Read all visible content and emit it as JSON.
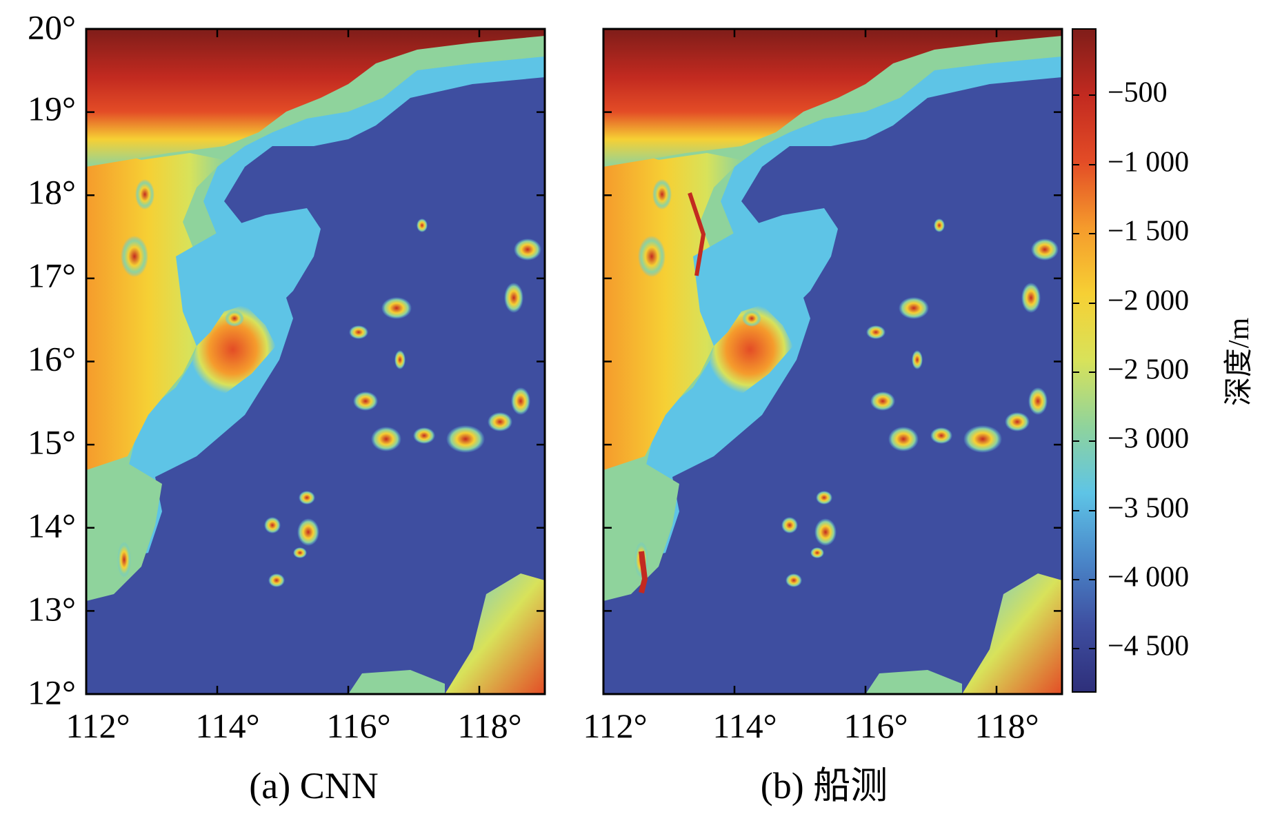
{
  "panels": [
    {
      "id": "a",
      "caption": "(a) CNN",
      "x_ticks": [
        "112°",
        "114°",
        "116°",
        "118°"
      ],
      "y_ticks": [
        "12°",
        "13°",
        "14°",
        "15°",
        "16°",
        "17°",
        "18°",
        "19°",
        "20°"
      ]
    },
    {
      "id": "b",
      "caption": "(b) 船测",
      "x_ticks": [
        "112°",
        "114°",
        "116°",
        "118°"
      ]
    }
  ],
  "colorbar": {
    "title": "深度/m",
    "ticks": [
      "−500",
      "−1 000",
      "−1 500",
      "−2 000",
      "−2 500",
      "−3 000",
      "−3 500",
      "−4 000",
      "−4 500"
    ],
    "colors": [
      "#2e2f7a",
      "#3e4ea0",
      "#4a87c9",
      "#5ec4e6",
      "#8fd39c",
      "#d8e25a",
      "#f6d034",
      "#f59b2c",
      "#e34c26",
      "#c22a20",
      "#7f1d19"
    ]
  },
  "map": {
    "lon_range": [
      112,
      119
    ],
    "lat_range": [
      12,
      20
    ],
    "units": "m"
  }
}
